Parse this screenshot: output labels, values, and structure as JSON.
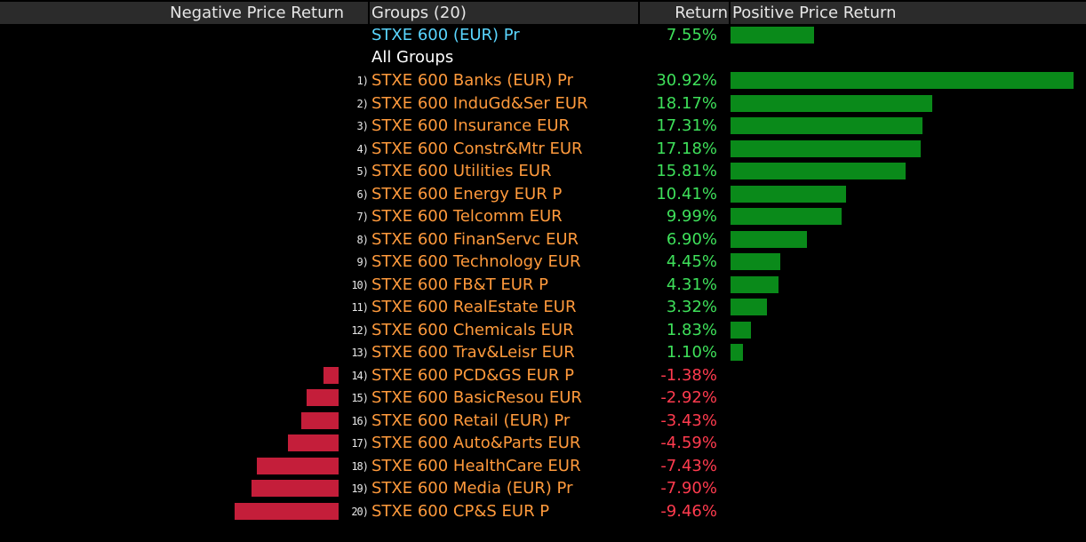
{
  "header": {
    "negative_label": "Negative Price Return",
    "groups_label": "Groups (20)",
    "return_label": "Return",
    "positive_label": "Positive Price Return"
  },
  "colors": {
    "positive_text": "#3ee05a",
    "negative_text": "#ff3b4e",
    "positive_bar": "#0a8a1a",
    "negative_bar": "#c41e3a",
    "group_text": "#ff9a3c",
    "index_text": "#5ad6ff"
  },
  "chart_data": {
    "type": "bar",
    "title": "",
    "xlabel": "Return",
    "ylabel": "Groups (20)",
    "unit": "%",
    "benchmark": {
      "name": "STXE 600 (EUR) Pr",
      "return_label": "7.55%",
      "value": 7.55
    },
    "section_label": "All Groups",
    "x_range": [
      -9.46,
      30.92
    ],
    "rows": [
      {
        "rank": "1)",
        "name": "STXE 600 Banks (EUR) Pr",
        "return_label": "30.92%",
        "value": 30.92
      },
      {
        "rank": "2)",
        "name": "STXE 600 InduGd&Ser EUR",
        "return_label": "18.17%",
        "value": 18.17
      },
      {
        "rank": "3)",
        "name": "STXE 600 Insurance EUR",
        "return_label": "17.31%",
        "value": 17.31
      },
      {
        "rank": "4)",
        "name": "STXE 600 Constr&Mtr EUR",
        "return_label": "17.18%",
        "value": 17.18
      },
      {
        "rank": "5)",
        "name": "STXE 600 Utilities EUR",
        "return_label": "15.81%",
        "value": 15.81
      },
      {
        "rank": "6)",
        "name": "STXE 600 Energy EUR P",
        "return_label": "10.41%",
        "value": 10.41
      },
      {
        "rank": "7)",
        "name": "STXE 600 Telcomm EUR",
        "return_label": "9.99%",
        "value": 9.99
      },
      {
        "rank": "8)",
        "name": "STXE 600 FinanServc EUR",
        "return_label": "6.90%",
        "value": 6.9
      },
      {
        "rank": "9)",
        "name": "STXE 600 Technology EUR",
        "return_label": "4.45%",
        "value": 4.45
      },
      {
        "rank": "10)",
        "name": "STXE 600 FB&T EUR P",
        "return_label": "4.31%",
        "value": 4.31
      },
      {
        "rank": "11)",
        "name": "STXE 600 RealEstate EUR",
        "return_label": "3.32%",
        "value": 3.32
      },
      {
        "rank": "12)",
        "name": "STXE 600 Chemicals EUR",
        "return_label": "1.83%",
        "value": 1.83
      },
      {
        "rank": "13)",
        "name": "STXE 600 Trav&Leisr EUR",
        "return_label": "1.10%",
        "value": 1.1
      },
      {
        "rank": "14)",
        "name": "STXE 600 PCD&GS EUR P",
        "return_label": "-1.38%",
        "value": -1.38
      },
      {
        "rank": "15)",
        "name": "STXE 600 BasicResou EUR",
        "return_label": "-2.92%",
        "value": -2.92
      },
      {
        "rank": "16)",
        "name": "STXE 600 Retail (EUR) Pr",
        "return_label": "-3.43%",
        "value": -3.43
      },
      {
        "rank": "17)",
        "name": "STXE 600 Auto&Parts EUR",
        "return_label": "-4.59%",
        "value": -4.59
      },
      {
        "rank": "18)",
        "name": "STXE 600 HealthCare EUR",
        "return_label": "-7.43%",
        "value": -7.43
      },
      {
        "rank": "19)",
        "name": "STXE 600 Media (EUR) Pr",
        "return_label": "-7.90%",
        "value": -7.9
      },
      {
        "rank": "20)",
        "name": "STXE 600 CP&S EUR P",
        "return_label": "-9.46%",
        "value": -9.46
      }
    ]
  }
}
